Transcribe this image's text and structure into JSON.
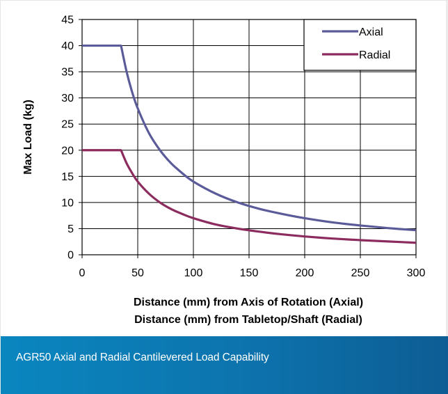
{
  "caption": "AGR50 Axial and Radial Cantilevered Load Capability",
  "chart_data": {
    "type": "line",
    "title": "",
    "xlabel_lines": [
      "Distance (mm) from Axis of Rotation (Axial)",
      "Distance (mm) from Tabletop/Shaft (Radial)"
    ],
    "ylabel": "Max Load (kg)",
    "xlim": [
      0,
      300
    ],
    "ylim": [
      0,
      45
    ],
    "xticks": [
      0,
      50,
      100,
      150,
      200,
      250,
      300
    ],
    "yticks": [
      0,
      5,
      10,
      15,
      20,
      25,
      30,
      35,
      40,
      45
    ],
    "grid": true,
    "legend_position": "top-right",
    "series": [
      {
        "name": "Axial",
        "color": "#5b5b9a",
        "x": [
          0,
          35,
          40,
          45,
          50,
          60,
          70,
          80,
          90,
          100,
          120,
          140,
          160,
          180,
          200,
          225,
          250,
          275,
          300
        ],
        "y": [
          40,
          40,
          35,
          31.1,
          28,
          23.3,
          20,
          17.5,
          15.6,
          14,
          11.7,
          10,
          8.75,
          7.8,
          7,
          6.2,
          5.6,
          5.1,
          4.7
        ]
      },
      {
        "name": "Radial",
        "color": "#8b2b5e",
        "x": [
          0,
          35,
          40,
          45,
          50,
          60,
          70,
          80,
          90,
          100,
          120,
          140,
          160,
          180,
          200,
          225,
          250,
          275,
          300
        ],
        "y": [
          20,
          20,
          17.5,
          15.6,
          14,
          11.7,
          10,
          8.75,
          7.8,
          7,
          5.8,
          5,
          4.4,
          3.9,
          3.5,
          3.1,
          2.8,
          2.55,
          2.3
        ]
      }
    ]
  }
}
